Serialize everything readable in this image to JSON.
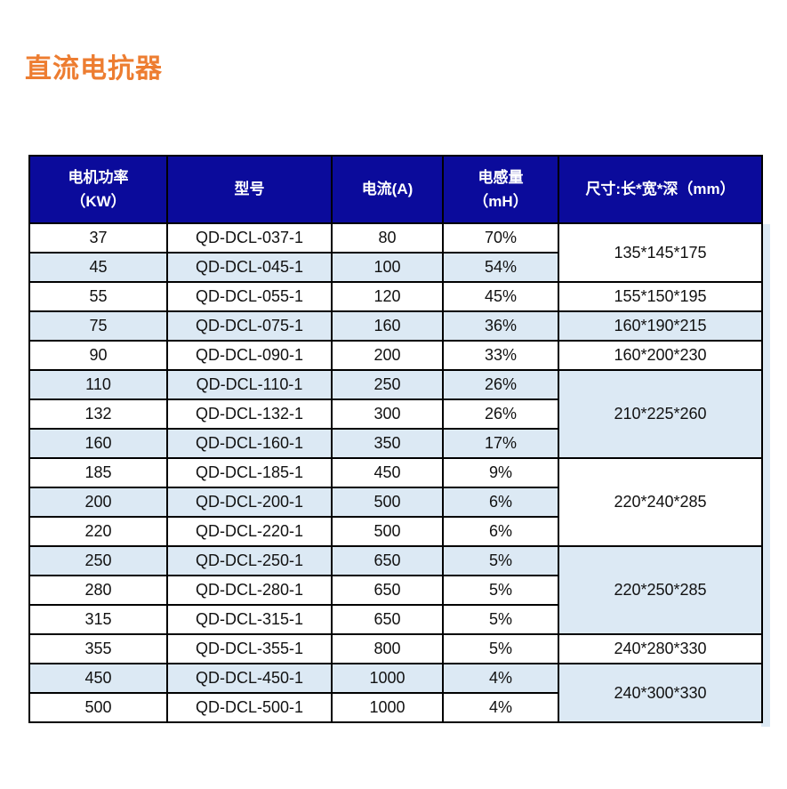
{
  "page": {
    "title": "直流电抗器"
  },
  "colors": {
    "title": "#ED7D31",
    "header_bg": "#0B0B9B",
    "header_text": "#FFFFFF",
    "row_bg": "#FFFFFF",
    "row_alt_bg": "#DCE9F4",
    "border": "#000000",
    "shadow": "#DCE9F4"
  },
  "table": {
    "header": {
      "power_line1": "电机功率",
      "power_line2": "（KW）",
      "model": "型号",
      "current": "电流(A)",
      "inductance_line1": "电感量",
      "inductance_line2": "（mH）",
      "size": "尺寸:长*宽*深（mm）"
    },
    "rows": [
      {
        "power": "37",
        "model": "QD-DCL-037-1",
        "current": "80",
        "inductance": "70%",
        "alt": false
      },
      {
        "power": "45",
        "model": "QD-DCL-045-1",
        "current": "100",
        "inductance": "54%",
        "alt": true
      },
      {
        "power": "55",
        "model": "QD-DCL-055-1",
        "current": "120",
        "inductance": "45%",
        "alt": false
      },
      {
        "power": "75",
        "model": "QD-DCL-075-1",
        "current": "160",
        "inductance": "36%",
        "alt": true
      },
      {
        "power": "90",
        "model": "QD-DCL-090-1",
        "current": "200",
        "inductance": "33%",
        "alt": false
      },
      {
        "power": "110",
        "model": "QD-DCL-110-1",
        "current": "250",
        "inductance": "26%",
        "alt": true
      },
      {
        "power": "132",
        "model": "QD-DCL-132-1",
        "current": "300",
        "inductance": "26%",
        "alt": false
      },
      {
        "power": "160",
        "model": "QD-DCL-160-1",
        "current": "350",
        "inductance": "17%",
        "alt": true
      },
      {
        "power": "185",
        "model": "QD-DCL-185-1",
        "current": "450",
        "inductance": "9%",
        "alt": false
      },
      {
        "power": "200",
        "model": "QD-DCL-200-1",
        "current": "500",
        "inductance": "6%",
        "alt": true
      },
      {
        "power": "220",
        "model": "QD-DCL-220-1",
        "current": "500",
        "inductance": "6%",
        "alt": false
      },
      {
        "power": "250",
        "model": "QD-DCL-250-1",
        "current": "650",
        "inductance": "5%",
        "alt": true
      },
      {
        "power": "280",
        "model": "QD-DCL-280-1",
        "current": "650",
        "inductance": "5%",
        "alt": false
      },
      {
        "power": "315",
        "model": "QD-DCL-315-1",
        "current": "650",
        "inductance": "5%",
        "alt": false
      },
      {
        "power": "355",
        "model": "QD-DCL-355-1",
        "current": "800",
        "inductance": "5%",
        "alt": false
      },
      {
        "power": "450",
        "model": "QD-DCL-450-1",
        "current": "1000",
        "inductance": "4%",
        "alt": true
      },
      {
        "power": "500",
        "model": "QD-DCL-500-1",
        "current": "1000",
        "inductance": "4%",
        "alt": false
      }
    ],
    "size_cells": [
      {
        "text": "135*145*175",
        "start": 0,
        "span": 2,
        "alt": false
      },
      {
        "text": "155*150*195",
        "start": 2,
        "span": 1,
        "alt": false
      },
      {
        "text": "160*190*215",
        "start": 3,
        "span": 1,
        "alt": true
      },
      {
        "text": "160*200*230",
        "start": 4,
        "span": 1,
        "alt": false
      },
      {
        "text": "210*225*260",
        "start": 5,
        "span": 3,
        "alt": false
      },
      {
        "text": "220*240*285",
        "start": 8,
        "span": 3,
        "alt": false
      },
      {
        "text": "220*250*285",
        "start": 11,
        "span": 3,
        "alt": false
      },
      {
        "text": "240*280*330",
        "start": 14,
        "span": 1,
        "alt": false
      },
      {
        "text": "240*300*330",
        "start": 15,
        "span": 2,
        "alt": false
      }
    ]
  }
}
